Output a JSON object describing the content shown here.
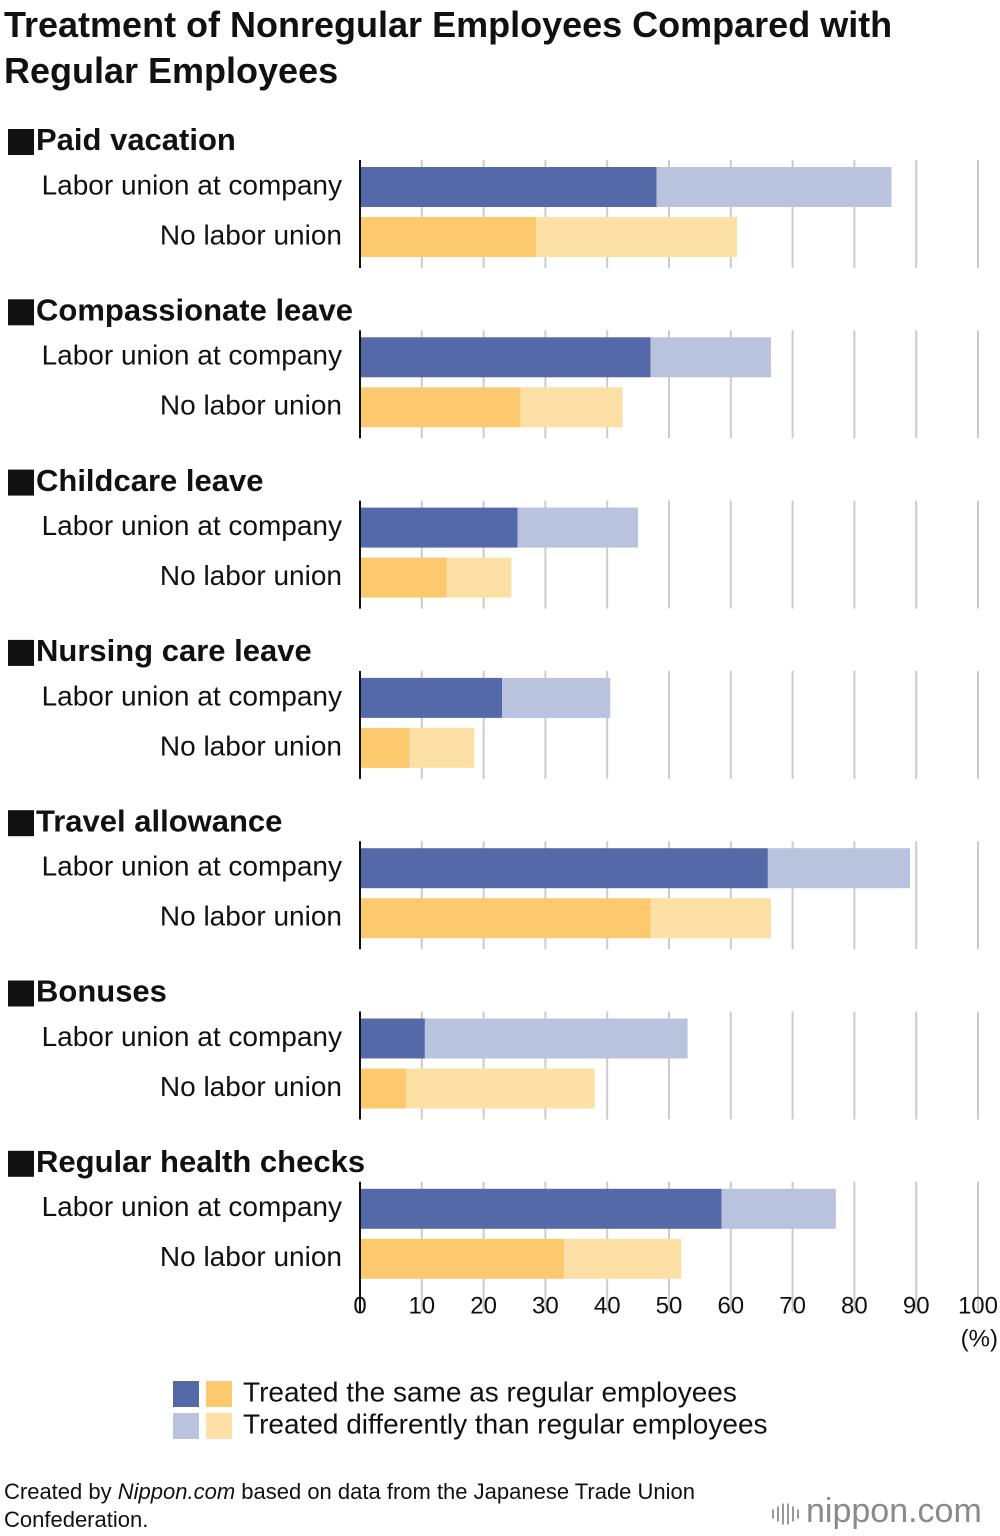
{
  "chart_data": {
    "type": "stacked-bar",
    "orientation": "horizontal",
    "title": "Treatment of Nonregular Employees Compared with Regular Employees",
    "groups": [
      "Paid vacation",
      "Compassionate leave",
      "Childcare leave",
      "Nursing care leave",
      "Travel allowance",
      "Bonuses",
      "Regular health checks"
    ],
    "categories": [
      "Labor union at company",
      "No labor union"
    ],
    "series": [
      {
        "name": "Treated the same as regular employees",
        "colors": [
          "#5569a8",
          "#fcc96e"
        ],
        "values": [
          [
            48,
            28.5
          ],
          [
            47,
            26
          ],
          [
            25.5,
            14
          ],
          [
            23,
            8
          ],
          [
            66,
            47
          ],
          [
            10.5,
            7.5
          ],
          [
            58.5,
            33
          ]
        ]
      },
      {
        "name": "Treated differently than regular employees",
        "colors": [
          "#bac3dd",
          "#fde0a6"
        ],
        "values": [
          [
            38,
            32.5
          ],
          [
            19.5,
            16.5
          ],
          [
            19.5,
            10.5
          ],
          [
            17.5,
            10.5
          ],
          [
            23,
            19.5
          ],
          [
            42.5,
            30.5
          ],
          [
            18.5,
            19
          ]
        ]
      }
    ],
    "xlim": [
      0,
      100
    ],
    "xticks": [
      0,
      10,
      20,
      30,
      40,
      50,
      60,
      70,
      80,
      90,
      100
    ],
    "x_unit": "(%)",
    "grid": true,
    "source_prefix": "Created by",
    "source_site": "Nippon.com",
    "source_rest": "based on data from the Japanese Trade Union Confederation.",
    "logo": "nippon.com"
  }
}
